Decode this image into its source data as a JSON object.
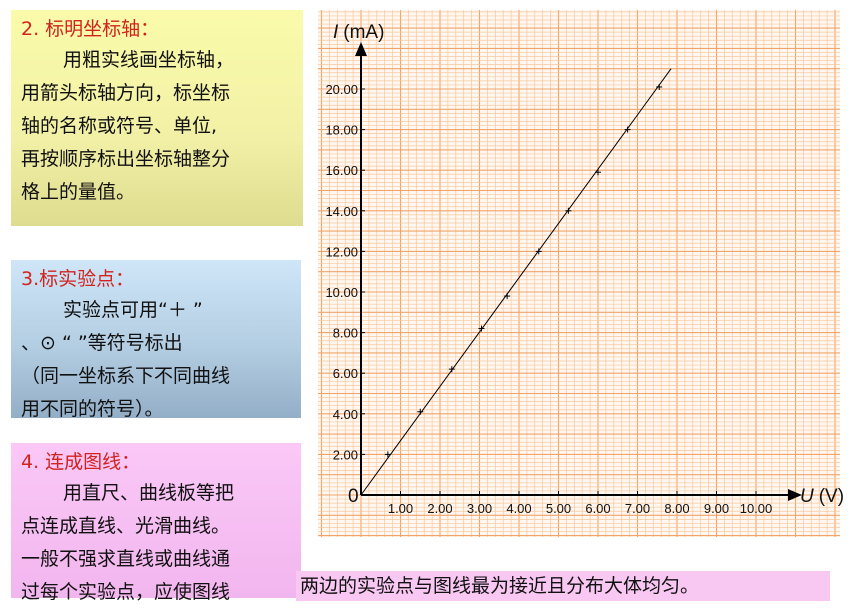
{
  "panel2": {
    "title": "2. 标明坐标轴：",
    "lines": [
      "用粗实线画坐标轴，",
      "用箭头标轴方向，标坐标",
      "轴的名称或符号、单位,",
      "再按顺序标出坐标轴整分",
      "格上的量值。"
    ]
  },
  "panel3": {
    "title": "3.标实验点：",
    "lines": [
      "实验点可用“＋  ”",
      "、⊙  “   ”等符号标出",
      "（同一坐标系下不同曲线",
      "用不同的符号）。"
    ]
  },
  "panel4": {
    "title": "4. 连成图线：",
    "lines": [
      "用直尺、曲线板等把",
      "点连成直线、光滑曲线。",
      "一般不强求直线或曲线通",
      "过每个实验点，应使图线"
    ]
  },
  "bottom_line": "两边的实验点与图线最为接近且分布大体均匀。",
  "colors": {
    "grid_minor": "#f9c79a",
    "grid_major": "#f2a468",
    "grid_bg": "#fff8f2",
    "axis": "#000000",
    "title_red": "#d2231e"
  },
  "chart_data": {
    "type": "scatter",
    "ylabel_symbol": "I",
    "ylabel_unit": "(mA)",
    "xlabel_symbol": "U",
    "xlabel_unit": "(V)",
    "origin_label": "0",
    "xlim": [
      0,
      11
    ],
    "ylim": [
      0,
      22
    ],
    "x_ticks": [
      "1.00",
      "2.00",
      "3.00",
      "4.00",
      "5.00",
      "6.00",
      "7.00",
      "8.00",
      "9.00",
      "10.00"
    ],
    "y_ticks": [
      "2.00",
      "4.00",
      "6.00",
      "8.00",
      "10.00",
      "12.00",
      "14.00",
      "16.00",
      "18.00",
      "20.00"
    ],
    "grid": true,
    "marker": "+",
    "points": [
      {
        "x": 0.68,
        "y": 2.0
      },
      {
        "x": 1.5,
        "y": 4.1
      },
      {
        "x": 2.3,
        "y": 6.2
      },
      {
        "x": 3.05,
        "y": 8.2
      },
      {
        "x": 3.7,
        "y": 9.8
      },
      {
        "x": 4.5,
        "y": 12.0
      },
      {
        "x": 5.25,
        "y": 14.0
      },
      {
        "x": 6.0,
        "y": 15.9
      },
      {
        "x": 6.75,
        "y": 18.0
      },
      {
        "x": 7.55,
        "y": 20.1
      }
    ],
    "fit_line": {
      "x": [
        0,
        7.85
      ],
      "y": [
        0,
        21.0
      ]
    }
  }
}
